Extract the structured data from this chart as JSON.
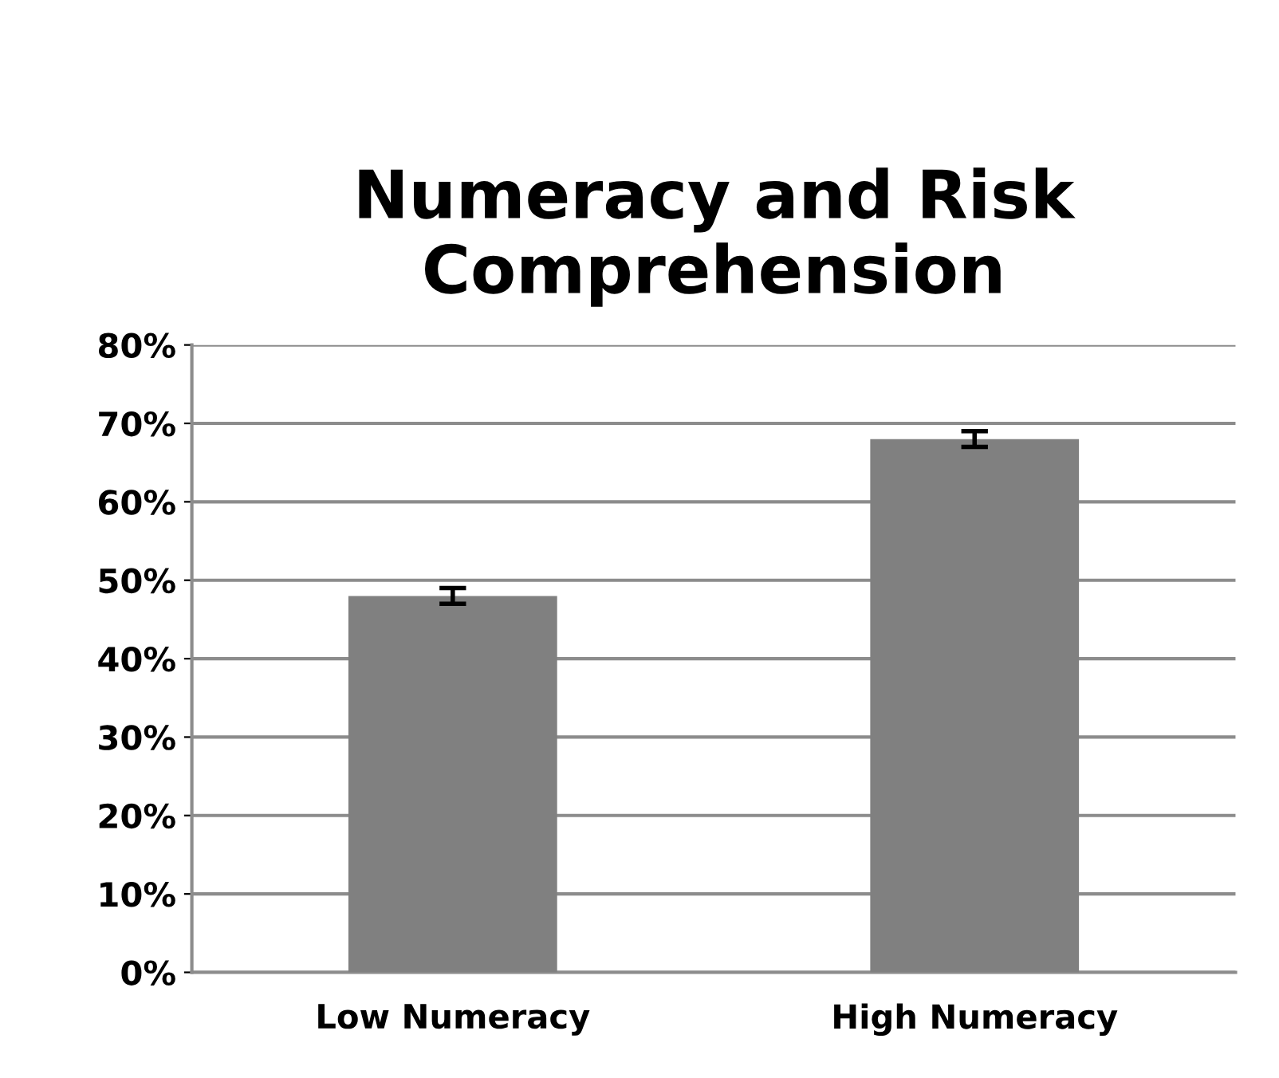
{
  "chart_data": {
    "type": "bar",
    "title": "Numeracy and Risk Comprehension",
    "categories": [
      "Low Numeracy",
      "High Numeracy"
    ],
    "values": [
      48,
      68
    ],
    "errors": [
      1,
      1
    ],
    "color": "#808080",
    "ylim": [
      0,
      80
    ],
    "yticks": [
      {
        "value": 0,
        "label": "0%"
      },
      {
        "value": 10,
        "label": "10%"
      },
      {
        "value": 20,
        "label": "20%"
      },
      {
        "value": 30,
        "label": "30%"
      },
      {
        "value": 40,
        "label": "40%"
      },
      {
        "value": 50,
        "label": "50%"
      },
      {
        "value": 60,
        "label": "60%"
      },
      {
        "value": 70,
        "label": "70%"
      },
      {
        "value": 80,
        "label": "80%"
      }
    ],
    "grid": "y",
    "legend": false
  }
}
